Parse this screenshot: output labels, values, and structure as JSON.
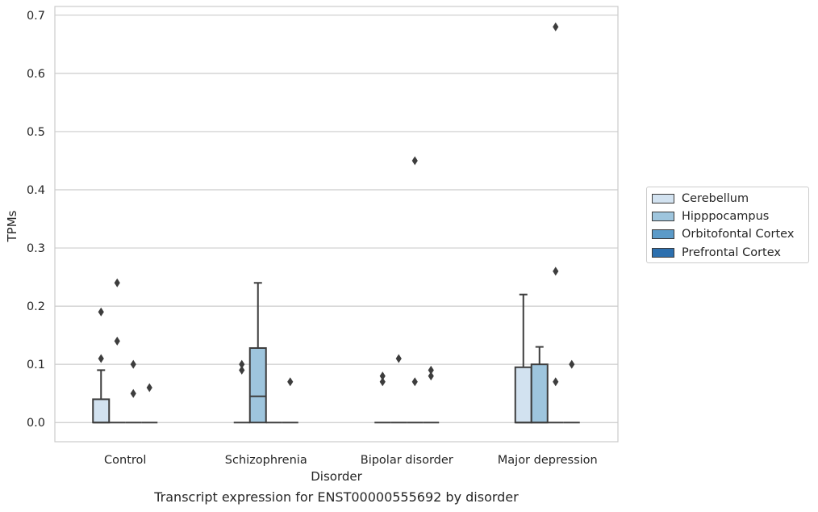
{
  "chart_data": {
    "type": "box",
    "xlabel": "Disorder",
    "ylabel": "TPMs",
    "caption": "Transcript expression for ENST00000555692 by disorder",
    "ylim": [
      -0.033,
      0.715
    ],
    "yticks": [
      0.0,
      0.1,
      0.2,
      0.3,
      0.4,
      0.5,
      0.6,
      0.7
    ],
    "ytick_labels": [
      "0.0",
      "0.1",
      "0.2",
      "0.3",
      "0.4",
      "0.5",
      "0.6",
      "0.7"
    ],
    "grid": "horizontal",
    "legend_position": "right",
    "categories": [
      "Control",
      "Schizophrenia",
      "Bipolar disorder",
      "Major depression"
    ],
    "series": [
      {
        "name": "Cerebellum",
        "color": "#d2e2f0",
        "boxes": [
          {
            "q1": 0.0,
            "median": 0.0,
            "q3": 0.04,
            "whisker_low": 0.0,
            "whisker_high": 0.09,
            "outliers": [
              0.11,
              0.19
            ]
          },
          {
            "q1": 0.0,
            "median": 0.0,
            "q3": 0.0,
            "whisker_low": 0.0,
            "whisker_high": 0.0,
            "outliers": [
              0.09,
              0.1
            ]
          },
          {
            "q1": 0.0,
            "median": 0.0,
            "q3": 0.0,
            "whisker_low": 0.0,
            "whisker_high": 0.0,
            "outliers": [
              0.07,
              0.08
            ]
          },
          {
            "q1": 0.0,
            "median": 0.0,
            "q3": 0.095,
            "whisker_low": 0.0,
            "whisker_high": 0.22,
            "outliers": []
          }
        ]
      },
      {
        "name": "Hipppocampus",
        "color": "#9ec5dd",
        "boxes": [
          {
            "q1": 0.0,
            "median": 0.0,
            "q3": 0.0,
            "whisker_low": 0.0,
            "whisker_high": 0.0,
            "outliers": [
              0.14,
              0.24
            ]
          },
          {
            "q1": 0.0,
            "median": 0.045,
            "q3": 0.128,
            "whisker_low": 0.0,
            "whisker_high": 0.24,
            "outliers": []
          },
          {
            "q1": 0.0,
            "median": 0.0,
            "q3": 0.0,
            "whisker_low": 0.0,
            "whisker_high": 0.0,
            "outliers": [
              0.11
            ]
          },
          {
            "q1": 0.0,
            "median": 0.0,
            "q3": 0.1,
            "whisker_low": 0.0,
            "whisker_high": 0.13,
            "outliers": []
          }
        ]
      },
      {
        "name": "Orbitofontal Cortex",
        "color": "#5b9ac8",
        "boxes": [
          {
            "q1": 0.0,
            "median": 0.0,
            "q3": 0.0,
            "whisker_low": 0.0,
            "whisker_high": 0.0,
            "outliers": [
              0.05,
              0.1
            ]
          },
          {
            "q1": 0.0,
            "median": 0.0,
            "q3": 0.0,
            "whisker_low": 0.0,
            "whisker_high": 0.0,
            "outliers": []
          },
          {
            "q1": 0.0,
            "median": 0.0,
            "q3": 0.0,
            "whisker_low": 0.0,
            "whisker_high": 0.0,
            "outliers": [
              0.07,
              0.45
            ]
          },
          {
            "q1": 0.0,
            "median": 0.0,
            "q3": 0.0,
            "whisker_low": 0.0,
            "whisker_high": 0.0,
            "outliers": [
              0.07,
              0.26,
              0.68
            ]
          }
        ]
      },
      {
        "name": "Prefrontal Cortex",
        "color": "#2c6fae",
        "boxes": [
          {
            "q1": 0.0,
            "median": 0.0,
            "q3": 0.0,
            "whisker_low": 0.0,
            "whisker_high": 0.0,
            "outliers": [
              0.06
            ]
          },
          {
            "q1": 0.0,
            "median": 0.0,
            "q3": 0.0,
            "whisker_low": 0.0,
            "whisker_high": 0.0,
            "outliers": [
              0.07
            ]
          },
          {
            "q1": 0.0,
            "median": 0.0,
            "q3": 0.0,
            "whisker_low": 0.0,
            "whisker_high": 0.0,
            "outliers": [
              0.08,
              0.09
            ]
          },
          {
            "q1": 0.0,
            "median": 0.0,
            "q3": 0.0,
            "whisker_low": 0.0,
            "whisker_high": 0.0,
            "outliers": [
              0.1
            ]
          }
        ]
      }
    ]
  }
}
